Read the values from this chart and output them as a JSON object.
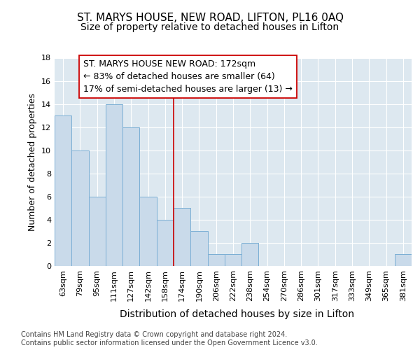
{
  "title": "ST. MARYS HOUSE, NEW ROAD, LIFTON, PL16 0AQ",
  "subtitle": "Size of property relative to detached houses in Lifton",
  "xlabel": "Distribution of detached houses by size in Lifton",
  "ylabel": "Number of detached properties",
  "categories": [
    "63sqm",
    "79sqm",
    "95sqm",
    "111sqm",
    "127sqm",
    "142sqm",
    "158sqm",
    "174sqm",
    "190sqm",
    "206sqm",
    "222sqm",
    "238sqm",
    "254sqm",
    "270sqm",
    "286sqm",
    "301sqm",
    "317sqm",
    "333sqm",
    "349sqm",
    "365sqm",
    "381sqm"
  ],
  "values": [
    13,
    10,
    6,
    14,
    12,
    6,
    4,
    5,
    3,
    1,
    1,
    2,
    0,
    0,
    0,
    0,
    0,
    0,
    0,
    0,
    1
  ],
  "bar_color": "#c9daea",
  "bar_edgecolor": "#7aaed4",
  "vline_index": 7,
  "vline_color": "#cc0000",
  "annotation_line1": "ST. MARYS HOUSE NEW ROAD: 172sqm",
  "annotation_line2": "← 83% of detached houses are smaller (64)",
  "annotation_line3": "17% of semi-detached houses are larger (13) →",
  "annotation_box_edgecolor": "#cc0000",
  "annotation_box_facecolor": "#ffffff",
  "ylim_max": 18,
  "yticks": [
    0,
    2,
    4,
    6,
    8,
    10,
    12,
    14,
    16,
    18
  ],
  "fig_background": "#ffffff",
  "plot_background": "#dde8f0",
  "grid_color": "#ffffff",
  "footer": "Contains HM Land Registry data © Crown copyright and database right 2024.\nContains public sector information licensed under the Open Government Licence v3.0.",
  "title_fontsize": 11,
  "subtitle_fontsize": 10,
  "xlabel_fontsize": 10,
  "ylabel_fontsize": 9,
  "tick_fontsize": 8,
  "annotation_fontsize": 9,
  "footer_fontsize": 7
}
